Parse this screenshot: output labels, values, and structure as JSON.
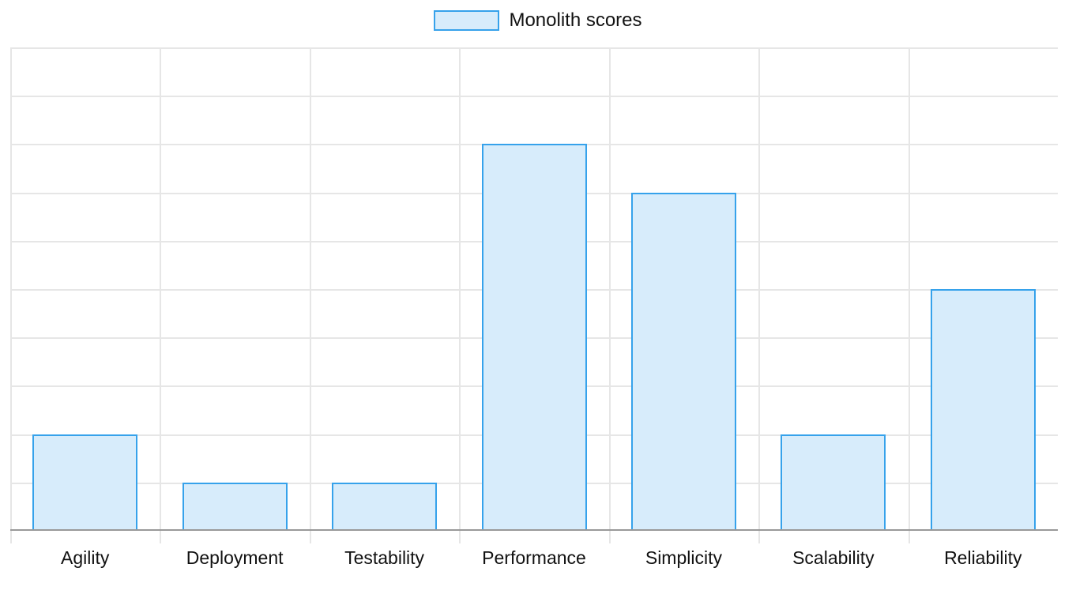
{
  "legend": {
    "label": "Monolith scores",
    "swatch_fill": "#D7ECFB",
    "swatch_border": "#36A2EB"
  },
  "chart_data": {
    "type": "bar",
    "title": "",
    "xlabel": "",
    "ylabel": "",
    "categories": [
      "Agility",
      "Deployment",
      "Testability",
      "Performance",
      "Simplicity",
      "Scalability",
      "Reliability"
    ],
    "series": [
      {
        "name": "Monolith scores",
        "values": [
          2,
          1,
          1,
          8,
          7,
          2,
          5
        ]
      }
    ],
    "ylim": [
      0,
      10
    ],
    "y_step": 1,
    "y_tick_labels_visible": false,
    "grid": true,
    "legend_position": "top-center",
    "colors": {
      "bar_fill": "#D7ECFB",
      "bar_border": "#36A2EB",
      "gridline": "#E6E6E6",
      "axis_line": "#999999",
      "label_text": "#111111"
    }
  }
}
